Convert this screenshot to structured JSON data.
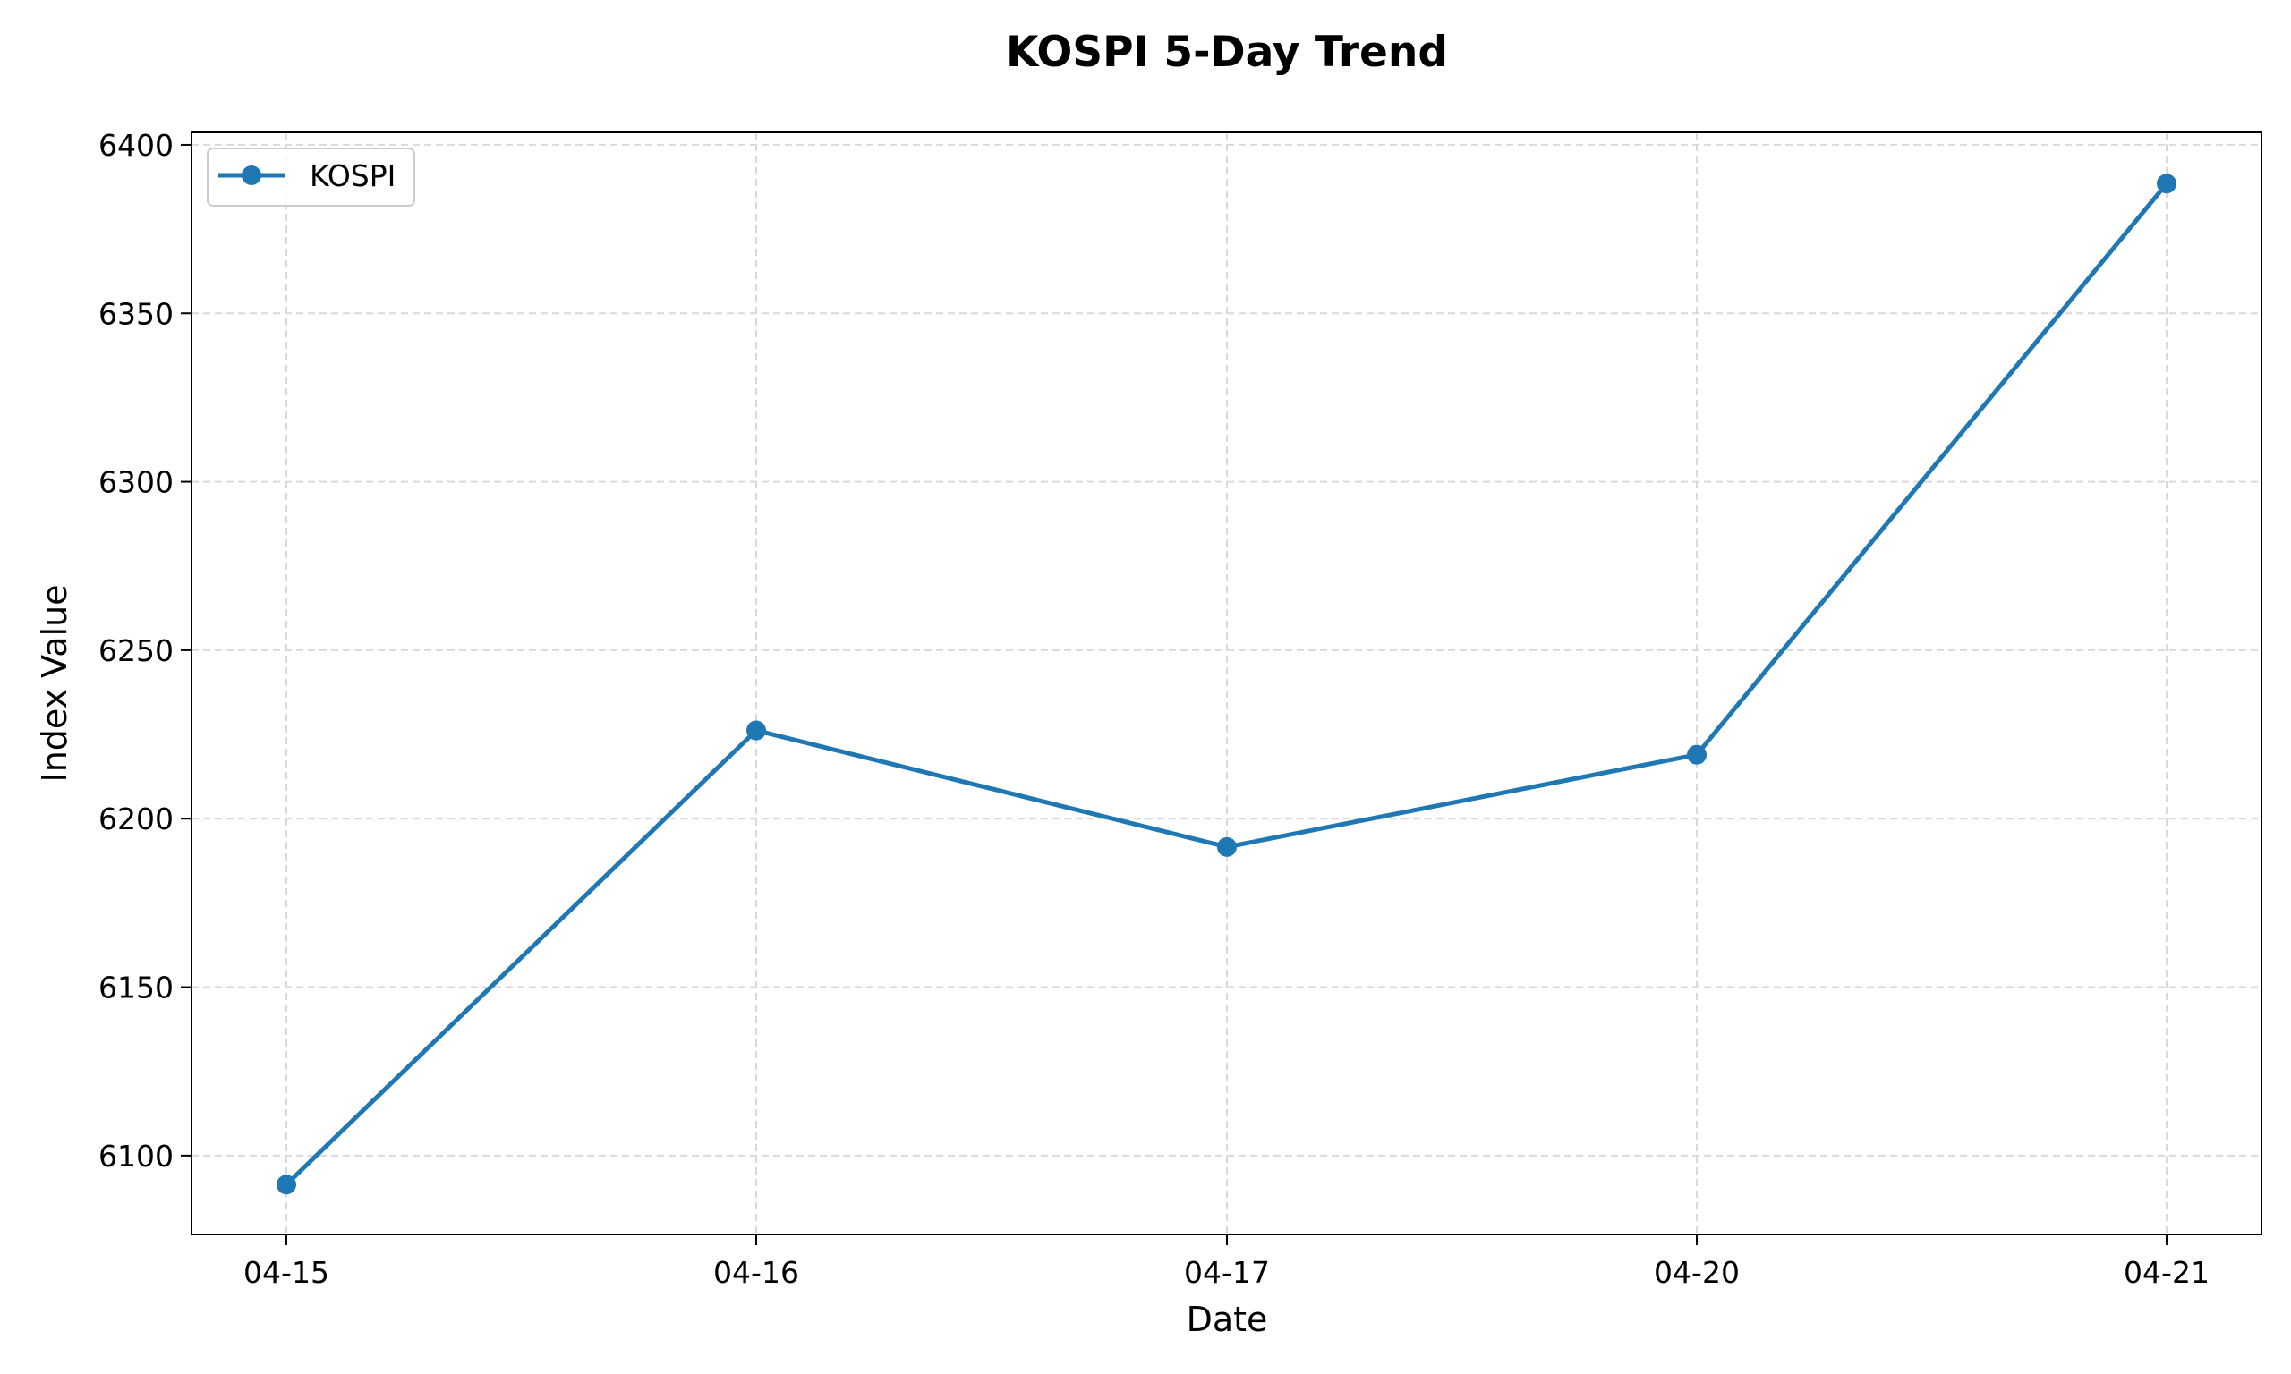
{
  "chart_data": {
    "type": "line",
    "title": "KOSPI 5-Day Trend",
    "xlabel": "Date",
    "ylabel": "Index Value",
    "categories": [
      "04-15",
      "04-16",
      "04-17",
      "04-20",
      "04-21"
    ],
    "series": [
      {
        "name": "KOSPI",
        "values": [
          6091.4,
          6226.2,
          6191.6,
          6219.0,
          6388.5
        ],
        "color": "#1f77b4",
        "marker": "circle"
      }
    ],
    "ylim": [
      6076.6,
      6403.7
    ],
    "yticks": [
      6100,
      6150,
      6200,
      6250,
      6300,
      6350,
      6400
    ],
    "grid": true,
    "grid_style": "dashed",
    "legend_position": "upper-left"
  }
}
